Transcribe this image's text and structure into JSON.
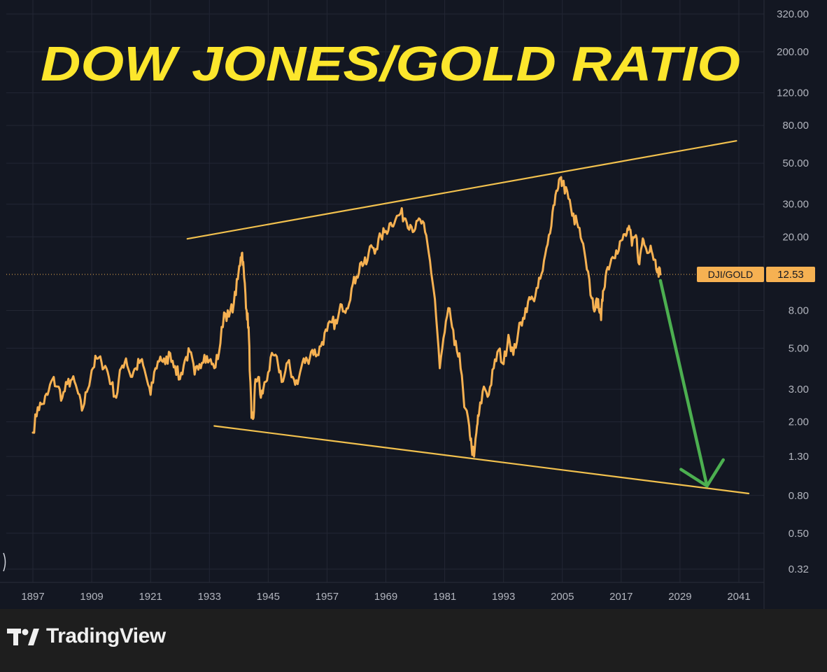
{
  "title": "DOW JONES/GOLD RATIO",
  "colors": {
    "background": "#131722",
    "grid": "#232734",
    "line": "#f6b152",
    "trend": "#f2c14e",
    "arrow": "#4caf50",
    "title": "#fce62c",
    "axis_text": "#b2b5be",
    "label_bg": "#f6b152",
    "footer_bg": "#1e1e1e"
  },
  "footer": {
    "brand": "TradingView",
    "logo_icon": "tradingview-logo-icon"
  },
  "chart_data": {
    "type": "line",
    "title": "DOW JONES/GOLD RATIO",
    "x_scale": "time",
    "y_scale": "log",
    "xlim": [
      1893,
      2046
    ],
    "ylim": [
      0.3,
      380
    ],
    "x_ticks": [
      "1897",
      "1909",
      "1921",
      "1933",
      "1945",
      "1957",
      "1969",
      "1981",
      "1993",
      "2005",
      "2017",
      "2029",
      "2041"
    ],
    "y_ticks": [
      "320.00",
      "200.00",
      "120.00",
      "80.00",
      "50.00",
      "30.00",
      "20.00",
      "8.00",
      "5.00",
      "3.00",
      "2.00",
      "1.30",
      "0.80",
      "0.50",
      "0.32"
    ],
    "grid": true,
    "series": [
      {
        "name": "DJI/GOLD",
        "last_value": "12.53",
        "points": [
          [
            1897,
            1.75
          ],
          [
            1898,
            2.4
          ],
          [
            1899,
            2.5
          ],
          [
            1900,
            2.8
          ],
          [
            1901,
            3.4
          ],
          [
            1902,
            3.1
          ],
          [
            1903,
            2.7
          ],
          [
            1904,
            3.2
          ],
          [
            1905,
            3.4
          ],
          [
            1906,
            3.0
          ],
          [
            1907,
            2.3
          ],
          [
            1908,
            2.9
          ],
          [
            1909,
            3.8
          ],
          [
            1910,
            4.4
          ],
          [
            1911,
            4.2
          ],
          [
            1912,
            3.9
          ],
          [
            1913,
            3.2
          ],
          [
            1914,
            2.7
          ],
          [
            1915,
            3.9
          ],
          [
            1916,
            4.4
          ],
          [
            1917,
            3.5
          ],
          [
            1918,
            3.9
          ],
          [
            1919,
            4.3
          ],
          [
            1920,
            3.6
          ],
          [
            1921,
            2.8
          ],
          [
            1922,
            3.9
          ],
          [
            1923,
            4.5
          ],
          [
            1924,
            4.1
          ],
          [
            1925,
            4.7
          ],
          [
            1926,
            4.0
          ],
          [
            1927,
            3.4
          ],
          [
            1928,
            4.3
          ],
          [
            1929,
            4.8
          ],
          [
            1930,
            3.6
          ],
          [
            1931,
            4.1
          ],
          [
            1932,
            4.6
          ],
          [
            1933,
            4.3
          ],
          [
            1934,
            3.9
          ],
          [
            1935,
            4.8
          ],
          [
            1936,
            7.8
          ],
          [
            1937,
            7.4
          ],
          [
            1938,
            8.8
          ],
          [
            1938.8,
            11.8
          ],
          [
            1939.4,
            15.5
          ],
          [
            1939.7,
            16.4
          ],
          [
            1940.1,
            12.0
          ],
          [
            1940.6,
            8.0
          ],
          [
            1941.0,
            6.5
          ],
          [
            1941.3,
            3.5
          ],
          [
            1941.6,
            2.1
          ],
          [
            1942.0,
            2.1
          ],
          [
            1942.4,
            3.4
          ],
          [
            1943.0,
            3.5
          ],
          [
            1943.5,
            2.7
          ],
          [
            1944,
            3.0
          ],
          [
            1945,
            3.7
          ],
          [
            1946,
            4.6
          ],
          [
            1947,
            4.1
          ],
          [
            1948,
            3.3
          ],
          [
            1949,
            4.2
          ],
          [
            1950,
            3.5
          ],
          [
            1951,
            3.2
          ],
          [
            1952,
            4.2
          ],
          [
            1953,
            4.3
          ],
          [
            1954,
            4.9
          ],
          [
            1955,
            4.6
          ],
          [
            1956,
            5.4
          ],
          [
            1957,
            6.2
          ],
          [
            1958,
            6.9
          ],
          [
            1959,
            6.8
          ],
          [
            1960,
            8.6
          ],
          [
            1961,
            8.2
          ],
          [
            1962,
            10.5
          ],
          [
            1963,
            12.2
          ],
          [
            1964,
            14.6
          ],
          [
            1965,
            14.2
          ],
          [
            1966,
            18.0
          ],
          [
            1967,
            17.2
          ],
          [
            1968,
            20.1
          ],
          [
            1969,
            21.5
          ],
          [
            1970,
            23.8
          ],
          [
            1971,
            24.9
          ],
          [
            1972,
            26.8
          ],
          [
            1973,
            25.1
          ],
          [
            1974,
            23.2
          ],
          [
            1975,
            22.1
          ],
          [
            1976,
            24.8
          ],
          [
            1977,
            21.2
          ],
          [
            1978,
            14.8
          ],
          [
            1979,
            9.2
          ],
          [
            1980,
            3.9
          ],
          [
            1981,
            6.1
          ],
          [
            1982,
            8.2
          ],
          [
            1983,
            5.2
          ],
          [
            1984,
            4.7
          ],
          [
            1985,
            2.4
          ],
          [
            1986,
            1.9
          ],
          [
            1986.5,
            1.45
          ],
          [
            1987,
            1.3
          ],
          [
            1987.6,
            1.9
          ],
          [
            1988,
            2.2
          ],
          [
            1989,
            3.1
          ],
          [
            1990,
            2.8
          ],
          [
            1991,
            3.9
          ],
          [
            1992,
            4.9
          ],
          [
            1993,
            4.1
          ],
          [
            1994,
            5.9
          ],
          [
            1995,
            4.6
          ],
          [
            1996,
            6.1
          ],
          [
            1997,
            7.3
          ],
          [
            1998,
            8.9
          ],
          [
            1999,
            9.2
          ],
          [
            2000,
            10.6
          ],
          [
            2001,
            13.1
          ],
          [
            2002,
            18.2
          ],
          [
            2003,
            27.2
          ],
          [
            2003.8,
            35.5
          ],
          [
            2004.5,
            41.5
          ],
          [
            2005,
            38.5
          ],
          [
            2006,
            35.2
          ],
          [
            2007,
            26.0
          ],
          [
            2008,
            23.8
          ],
          [
            2009,
            18.9
          ],
          [
            2010,
            13.3
          ],
          [
            2011,
            9.3
          ],
          [
            2011.7,
            8.1
          ],
          [
            2012.3,
            9.2
          ],
          [
            2012.9,
            7.1
          ],
          [
            2013.3,
            10.2
          ],
          [
            2014,
            13.1
          ],
          [
            2015,
            15.2
          ],
          [
            2016,
            16.9
          ],
          [
            2017,
            19.1
          ],
          [
            2018,
            20.2
          ],
          [
            2018.6,
            22.9
          ],
          [
            2019.2,
            17.9
          ],
          [
            2020,
            20.4
          ],
          [
            2020.7,
            14.2
          ],
          [
            2021.4,
            19.6
          ],
          [
            2022.1,
            17.2
          ],
          [
            2023,
            17.9
          ],
          [
            2023.8,
            15.1
          ],
          [
            2024.5,
            13.4
          ],
          [
            2025,
            12.53
          ]
        ]
      }
    ],
    "annotations": [
      {
        "type": "trendline",
        "name": "upper-trendline",
        "points": [
          [
            1928.5,
            19.5
          ],
          [
            2040.5,
            66
          ]
        ]
      },
      {
        "type": "trendline",
        "name": "lower-trendline",
        "points": [
          [
            1934,
            1.9
          ],
          [
            2043,
            0.82
          ]
        ]
      },
      {
        "type": "arrow",
        "name": "forecast-arrow",
        "from": [
          2025,
          11.6
        ],
        "to": [
          2034.5,
          0.9
        ]
      },
      {
        "type": "price-line",
        "value": 12.53,
        "label": "DJI/GOLD",
        "value_label": "12.53"
      }
    ]
  }
}
